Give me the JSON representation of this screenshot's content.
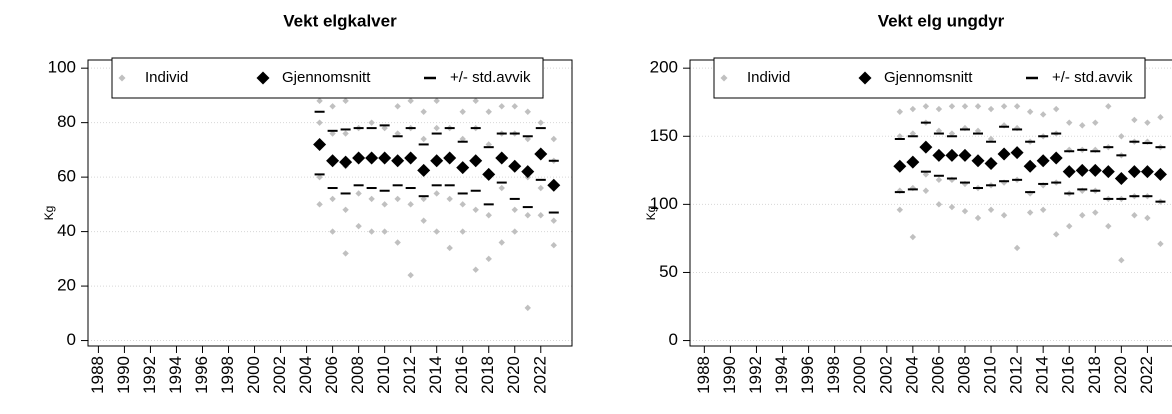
{
  "chart_data": [
    {
      "type": "scatter",
      "title": "Vekt elgkalver",
      "y_label": "Kg",
      "xlim": [
        1987.2,
        2024.4
      ],
      "xticks": [
        1988,
        1990,
        1992,
        1994,
        1996,
        1998,
        2000,
        2002,
        2004,
        2006,
        2008,
        2010,
        2012,
        2014,
        2016,
        2018,
        2020,
        2022
      ],
      "ylim": [
        -2,
        103
      ],
      "yticks": [
        0,
        20,
        40,
        60,
        80,
        100
      ],
      "grid": true,
      "legend": "top",
      "series": [
        {
          "name": "Individ",
          "color": "#c0c0c0",
          "x": [
            2005,
            2006,
            2007,
            2008,
            2009,
            2010,
            2011,
            2012,
            2013,
            2014,
            2015,
            2016,
            2017,
            2018,
            2019,
            2020,
            2021,
            2022,
            2023
          ],
          "values": [
            [
              50,
              60,
              72,
              80,
              88
            ],
            [
              40,
              52,
              66,
              76,
              86
            ],
            [
              32,
              48,
              64,
              76,
              88
            ],
            [
              42,
              54,
              67,
              78,
              90
            ],
            [
              40,
              52,
              68,
              80,
              90
            ],
            [
              40,
              50,
              66,
              78,
              90
            ],
            [
              36,
              52,
              66,
              76,
              86
            ],
            [
              24,
              50,
              68,
              78,
              88
            ],
            [
              44,
              52,
              62,
              74,
              84
            ],
            [
              40,
              54,
              66,
              78,
              88
            ],
            [
              34,
              52,
              66,
              78,
              90
            ],
            [
              40,
              50,
              64,
              74,
              84
            ],
            [
              26,
              48,
              66,
              78,
              88
            ],
            [
              30,
              46,
              62,
              72,
              84
            ],
            [
              36,
              56,
              68,
              76,
              86
            ],
            [
              40,
              48,
              64,
              76,
              86
            ],
            [
              12,
              46,
              60,
              74,
              84
            ],
            [
              46,
              56,
              68,
              80,
              90
            ],
            [
              35,
              44,
              56,
              66,
              74
            ]
          ]
        },
        {
          "name": "Gjennomsnitt",
          "color": "#000000",
          "x": [
            2005,
            2006,
            2007,
            2008,
            2009,
            2010,
            2011,
            2012,
            2013,
            2014,
            2015,
            2016,
            2017,
            2018,
            2019,
            2020,
            2021,
            2022,
            2023
          ],
          "values": [
            72,
            66,
            65.5,
            67,
            67,
            67,
            66,
            67,
            62.5,
            66,
            67,
            63.5,
            66,
            61,
            67,
            64,
            62,
            68.5,
            57
          ]
        },
        {
          "name": "+/- std.avvik",
          "color": "#000000",
          "x": [
            2005,
            2006,
            2007,
            2008,
            2009,
            2010,
            2011,
            2012,
            2013,
            2014,
            2015,
            2016,
            2017,
            2018,
            2019,
            2020,
            2021,
            2022,
            2023
          ],
          "upper": [
            84,
            77,
            77.5,
            78,
            78,
            79,
            75,
            78,
            72,
            76,
            78,
            73,
            78,
            71,
            76,
            76,
            75,
            78,
            66
          ],
          "lower": [
            61,
            56,
            54,
            57,
            56,
            55,
            57,
            56,
            53,
            57,
            57,
            54,
            55,
            50,
            58,
            52,
            49,
            59,
            47
          ]
        }
      ]
    },
    {
      "type": "scatter",
      "title": "Vekt elg ungdyr",
      "y_label": "Kg",
      "xlim": [
        1986.9,
        2024.5
      ],
      "xticks": [
        1988,
        1990,
        1992,
        1994,
        1996,
        1998,
        2000,
        2002,
        2004,
        2006,
        2008,
        2010,
        2012,
        2014,
        2016,
        2018,
        2020,
        2022
      ],
      "ylim": [
        -4,
        206
      ],
      "yticks": [
        0,
        50,
        100,
        150,
        200
      ],
      "grid": true,
      "legend": "top",
      "series": [
        {
          "name": "Individ",
          "color": "#c0c0c0",
          "x": [
            2003,
            2004,
            2005,
            2006,
            2007,
            2008,
            2009,
            2010,
            2011,
            2012,
            2013,
            2014,
            2015,
            2016,
            2017,
            2018,
            2019,
            2020,
            2021,
            2022,
            2023
          ],
          "values": [
            [
              96,
              110,
              128,
              150,
              168
            ],
            [
              76,
              112,
              130,
              152,
              170
            ],
            [
              110,
              122,
              142,
              160,
              172
            ],
            [
              100,
              118,
              136,
              154,
              170
            ],
            [
              98,
              118,
              136,
              152,
              172
            ],
            [
              95,
              115,
              136,
              156,
              172
            ],
            [
              90,
              112,
              132,
              154,
              172
            ],
            [
              96,
              114,
              130,
              148,
              170
            ],
            [
              92,
              116,
              138,
              158,
              172
            ],
            [
              68,
              118,
              138,
              156,
              172
            ],
            [
              94,
              108,
              128,
              146,
              168
            ],
            [
              96,
              114,
              132,
              150,
              166
            ],
            [
              78,
              116,
              134,
              152,
              170
            ],
            [
              84,
              108,
              124,
              140,
              160
            ],
            [
              92,
              110,
              125,
              140,
              158
            ],
            [
              94,
              110,
              125,
              140,
              160
            ],
            [
              84,
              104,
              124,
              142,
              172
            ],
            [
              59,
              104,
              119,
              136,
              150
            ],
            [
              92,
              106,
              124,
              146,
              162
            ],
            [
              90,
              106,
              124,
              146,
              160
            ],
            [
              71,
              102,
              122,
              142,
              164
            ]
          ]
        },
        {
          "name": "Gjennomsnitt",
          "color": "#000000",
          "x": [
            2003,
            2004,
            2005,
            2006,
            2007,
            2008,
            2009,
            2010,
            2011,
            2012,
            2013,
            2014,
            2015,
            2016,
            2017,
            2018,
            2019,
            2020,
            2021,
            2022,
            2023
          ],
          "values": [
            128,
            131,
            142,
            136,
            136,
            136,
            132,
            130,
            137,
            138,
            128,
            132,
            134,
            124,
            125,
            125,
            124,
            119,
            124,
            124,
            122
          ]
        },
        {
          "name": "+/- std.avvik",
          "color": "#000000",
          "x": [
            2003,
            2004,
            2005,
            2006,
            2007,
            2008,
            2009,
            2010,
            2011,
            2012,
            2013,
            2014,
            2015,
            2016,
            2017,
            2018,
            2019,
            2020,
            2021,
            2022,
            2023
          ],
          "upper": [
            148,
            150,
            160,
            152,
            150,
            155,
            152,
            146,
            157,
            155,
            146,
            150,
            152,
            139,
            140,
            139,
            142,
            136,
            146,
            145,
            142
          ],
          "lower": [
            109,
            111,
            124,
            121,
            119,
            116,
            112,
            114,
            117,
            118,
            109,
            115,
            116,
            108,
            111,
            110,
            104,
            104,
            106,
            106,
            102
          ]
        }
      ]
    }
  ]
}
